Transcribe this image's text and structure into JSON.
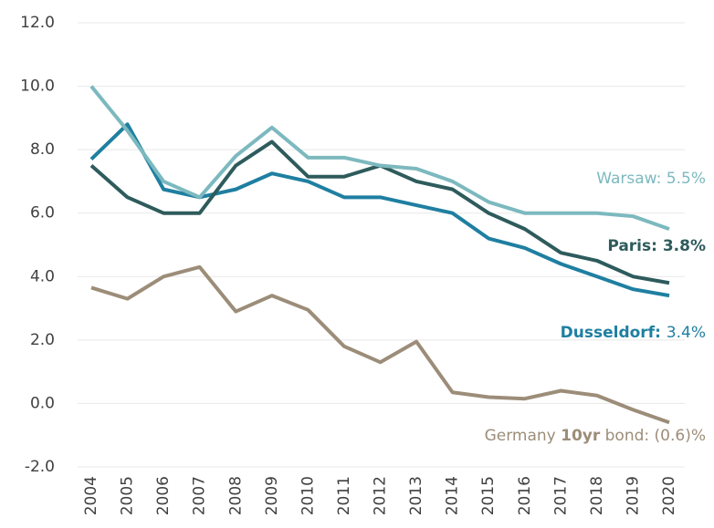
{
  "chart_data": {
    "type": "line",
    "categories": [
      "2004",
      "2005",
      "2006",
      "2007",
      "2008",
      "2009",
      "2010",
      "2011",
      "2012",
      "2013",
      "2014",
      "2015",
      "2016",
      "2017",
      "2018",
      "2019",
      "2020"
    ],
    "ylim": [
      -2,
      12
    ],
    "yticks": [
      {
        "value": -2,
        "label": "-2.0"
      },
      {
        "value": 0,
        "label": "0.0"
      },
      {
        "value": 2,
        "label": "2.0"
      },
      {
        "value": 4,
        "label": "4.0"
      },
      {
        "value": 6,
        "label": "6.0"
      },
      {
        "value": 8,
        "label": "8.0"
      },
      {
        "value": 10,
        "label": "10.0"
      },
      {
        "value": 12,
        "label": "12.0"
      }
    ],
    "grid": true,
    "series": [
      {
        "label_parts": [
          {
            "text": "Warsaw: ",
            "bold": false
          }
        ],
        "value_bold": false,
        "color": "#7cb9bf",
        "values": [
          10.0,
          8.6,
          7.0,
          6.5,
          7.8,
          8.7,
          7.75,
          7.75,
          7.5,
          7.4,
          7.0,
          6.35,
          6.0,
          6.0,
          6.0,
          5.9,
          5.5
        ],
        "value_labels": [
          null,
          null,
          null,
          null,
          null,
          null,
          null,
          null,
          null,
          null,
          null,
          null,
          null,
          null,
          null,
          null,
          "5.5%"
        ]
      },
      {
        "label_parts": [
          {
            "text": "Paris: ",
            "bold": true
          }
        ],
        "value_bold": true,
        "color": "#2e5b5c",
        "values": [
          7.5,
          6.5,
          6.0,
          6.0,
          7.5,
          8.25,
          7.15,
          7.15,
          7.5,
          7.0,
          6.75,
          6.0,
          5.5,
          4.75,
          4.5,
          4.0,
          3.8
        ],
        "value_labels": [
          null,
          null,
          null,
          null,
          null,
          null,
          null,
          null,
          null,
          null,
          null,
          null,
          null,
          null,
          null,
          null,
          "3.8%"
        ]
      },
      {
        "label_parts": [
          {
            "text": "Dusseldorf: ",
            "bold": true
          }
        ],
        "value_bold": false,
        "color": "#1f7fa1",
        "values": [
          7.7,
          8.8,
          6.75,
          6.5,
          6.75,
          7.25,
          7.0,
          6.5,
          6.5,
          6.25,
          6.0,
          5.2,
          4.9,
          4.4,
          4.0,
          3.6,
          3.4
        ],
        "value_labels": [
          null,
          null,
          null,
          null,
          null,
          null,
          null,
          null,
          null,
          null,
          null,
          null,
          null,
          null,
          null,
          null,
          "3.4%"
        ]
      },
      {
        "label_parts": [
          {
            "text": "Germany ",
            "bold": false
          },
          {
            "text": "10yr",
            "bold": true
          },
          {
            "text": " bond: ",
            "bold": false
          }
        ],
        "value_bold": false,
        "color": "#9c8d79",
        "values": [
          3.65,
          3.3,
          4.0,
          4.3,
          2.9,
          3.4,
          2.95,
          1.8,
          1.3,
          1.95,
          0.35,
          0.2,
          0.15,
          0.4,
          0.25,
          -0.2,
          -0.6
        ],
        "value_labels": [
          null,
          null,
          null,
          null,
          null,
          null,
          null,
          null,
          null,
          null,
          null,
          null,
          null,
          null,
          null,
          null,
          "(0.6)%"
        ]
      }
    ]
  }
}
